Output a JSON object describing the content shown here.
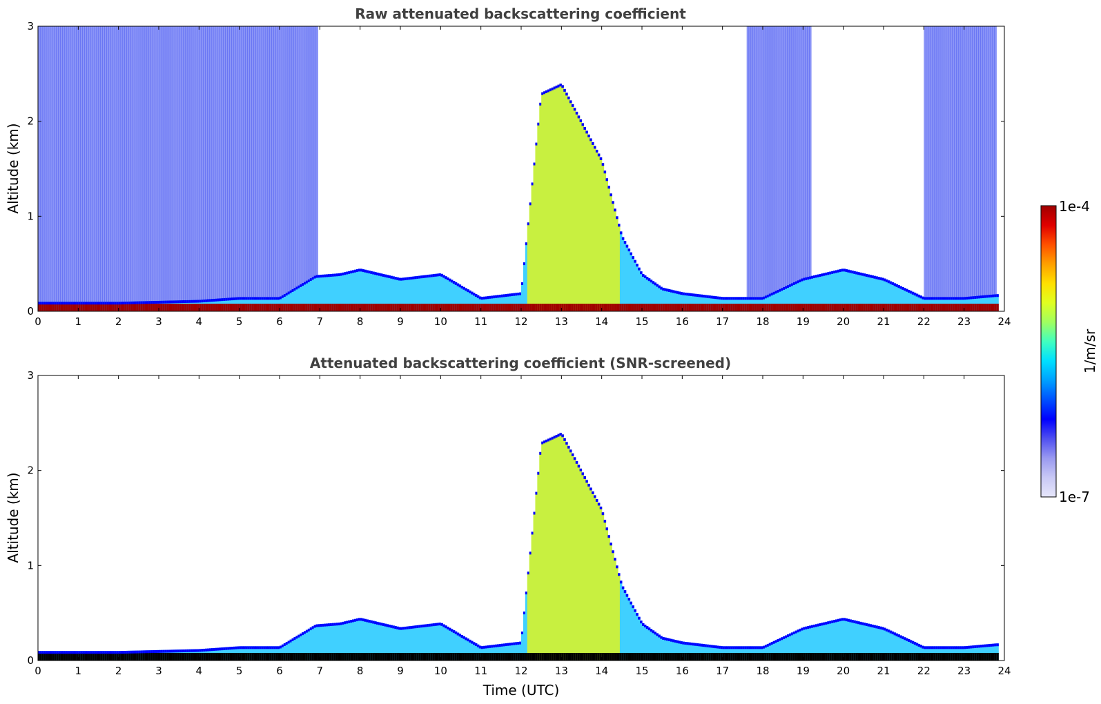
{
  "chart_data": [
    {
      "type": "heatmap",
      "title": "Raw attenuated backscattering coefficient",
      "xlabel": "",
      "ylabel": "Altitude (km)",
      "xlim": [
        0,
        24
      ],
      "ylim": [
        0,
        3
      ],
      "xticks": [
        "0",
        "1",
        "2",
        "3",
        "4",
        "5",
        "6",
        "7",
        "8",
        "9",
        "10",
        "11",
        "12",
        "13",
        "14",
        "15",
        "16",
        "17",
        "18",
        "19",
        "20",
        "21",
        "22",
        "23",
        "24"
      ],
      "yticks": [
        "0",
        "1",
        "2",
        "3"
      ],
      "series": [
        {
          "time": [
            0.5,
            2.0,
            4.0,
            5.0,
            6.0,
            6.9,
            7.5,
            8.0,
            9.0,
            10.0,
            11.0,
            12.0,
            12.5,
            13.0,
            13.5,
            14.0,
            14.5,
            15.0,
            15.5,
            16.0,
            17.0,
            18.0,
            19.0,
            20.0,
            21.0,
            22.0,
            23.0,
            23.8
          ],
          "layer_top_km": [
            0.1,
            0.1,
            0.12,
            0.15,
            0.15,
            0.38,
            0.4,
            0.45,
            0.35,
            0.4,
            0.15,
            0.2,
            2.3,
            2.4,
            2.0,
            1.6,
            0.8,
            0.4,
            0.25,
            0.2,
            0.15,
            0.15,
            0.35,
            0.45,
            0.35,
            0.15,
            0.15,
            0.18
          ]
        }
      ]
    },
    {
      "type": "heatmap",
      "title": "Attenuated backscattering coefficient (SNR-screened)",
      "xlabel": "Time (UTC)",
      "ylabel": "Altitude (km)",
      "xlim": [
        0,
        24
      ],
      "ylim": [
        0,
        3
      ],
      "xticks": [
        "0",
        "1",
        "2",
        "3",
        "4",
        "5",
        "6",
        "7",
        "8",
        "9",
        "10",
        "11",
        "12",
        "13",
        "14",
        "15",
        "16",
        "17",
        "18",
        "19",
        "20",
        "21",
        "22",
        "23",
        "24"
      ],
      "yticks": [
        "0",
        "1",
        "2",
        "3"
      ],
      "series": [
        {
          "time": [
            0.5,
            2.0,
            4.0,
            5.0,
            6.0,
            6.9,
            7.5,
            8.0,
            9.0,
            10.0,
            11.0,
            12.0,
            12.5,
            13.0,
            13.5,
            14.0,
            14.5,
            15.0,
            15.5,
            16.0,
            17.0,
            18.0,
            19.0,
            20.0,
            21.0,
            22.0,
            23.0,
            23.8
          ],
          "layer_top_km": [
            0.1,
            0.1,
            0.12,
            0.15,
            0.15,
            0.38,
            0.4,
            0.45,
            0.35,
            0.4,
            0.15,
            0.2,
            2.3,
            2.4,
            2.0,
            1.6,
            0.8,
            0.4,
            0.25,
            0.2,
            0.15,
            0.15,
            0.35,
            0.45,
            0.35,
            0.15,
            0.15,
            0.18
          ]
        }
      ]
    }
  ],
  "colorbar": {
    "label": "1/m/sr",
    "max_label": "1e-4",
    "min_label": "1e-7",
    "colors": [
      "#e6e6fa",
      "#c8c8f5",
      "#9a9af0",
      "#5050f0",
      "#0000ff",
      "#0050ff",
      "#00a0ff",
      "#00e0ff",
      "#40ffc0",
      "#a0ff60",
      "#e0ff20",
      "#ffe000",
      "#ffa000",
      "#ff5000",
      "#e00000",
      "#a00000"
    ]
  }
}
